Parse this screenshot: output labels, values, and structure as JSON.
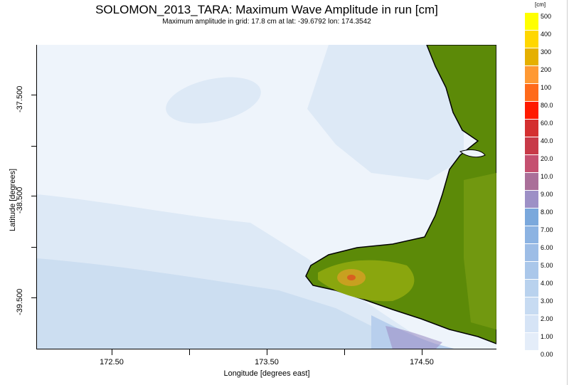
{
  "title": "SOLOMON_2013_TARA: Maximum Wave Amplitude in run [cm]",
  "subtitle": "Maximum amplitude in grid: 17.8 cm at lat: -39.6792 lon: 174.3542",
  "x_axis": {
    "label": "Longitude [degrees east]",
    "ticks": [
      "172.50",
      "173.50",
      "174.50"
    ]
  },
  "y_axis": {
    "label": "Latitude [degrees]",
    "ticks": [
      "-37.500",
      "-38.500",
      "-39.500"
    ]
  },
  "colorbar": {
    "unit": "[cm]",
    "labels": [
      "500",
      "400",
      "300",
      "200",
      "100",
      "80.0",
      "60.0",
      "40.0",
      "20.0",
      "10.0",
      "9.00",
      "8.00",
      "7.00",
      "6.00",
      "5.00",
      "4.00",
      "3.00",
      "2.00",
      "1.00",
      "0.00"
    ],
    "colors": [
      "#ffff00",
      "#ffd700",
      "#e5b000",
      "#ff9933",
      "#ff6a1a",
      "#ff1a00",
      "#d43030",
      "#c83a48",
      "#c55070",
      "#aa6f99",
      "#9d90c6",
      "#7aa8dc",
      "#8cb3e2",
      "#9dbde6",
      "#aac7ea",
      "#b9d2ee",
      "#c7dbf2",
      "#d6e4f6",
      "#e4edf9",
      "#f1f6fc"
    ]
  },
  "map_colors": {
    "land": "#5c8a08",
    "land_high": "#8aa60e",
    "peak": "#c8a020",
    "sea_base": "#eef4fb",
    "sea_light": "#dde9f6",
    "sea_mid": "#c8dbf0"
  }
}
